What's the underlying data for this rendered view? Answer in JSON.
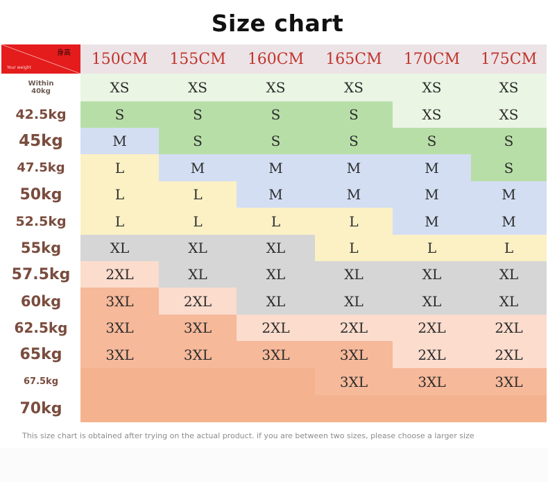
{
  "title": "Size chart",
  "corner": {
    "top_label": "身高",
    "bottom_label": "Your weight",
    "color": "#e41c1c"
  },
  "heights": [
    "150CM",
    "155CM",
    "160CM",
    "165CM",
    "170CM",
    "175CM"
  ],
  "weights": [
    "Within\n40kg",
    "42.5kg",
    "45kg",
    "47.5kg",
    "50kg",
    "52.5kg",
    "55kg",
    "57.5kg",
    "60kg",
    "62.5kg",
    "65kg",
    "67.5kg",
    "70kg"
  ],
  "sizes": [
    [
      "XS",
      "XS",
      "XS",
      "XS",
      "XS",
      "XS"
    ],
    [
      "S",
      "S",
      "S",
      "S",
      "XS",
      "XS"
    ],
    [
      "M",
      "S",
      "S",
      "S",
      "S",
      "S"
    ],
    [
      "L",
      "M",
      "M",
      "M",
      "M",
      "S"
    ],
    [
      "L",
      "L",
      "M",
      "M",
      "M",
      "M"
    ],
    [
      "L",
      "L",
      "L",
      "L",
      "M",
      "M"
    ],
    [
      "XL",
      "XL",
      "XL",
      "L",
      "L",
      "L"
    ],
    [
      "2XL",
      "XL",
      "XL",
      "XL",
      "XL",
      "XL"
    ],
    [
      "3XL",
      "2XL",
      "XL",
      "XL",
      "XL",
      "XL"
    ],
    [
      "3XL",
      "3XL",
      "2XL",
      "2XL",
      "2XL",
      "2XL"
    ],
    [
      "3XL",
      "3XL",
      "3XL",
      "3XL",
      "2XL",
      "2XL"
    ],
    [
      "",
      "",
      "",
      "3XL",
      "3XL",
      "3XL"
    ],
    [
      "",
      "",
      "",
      "",
      "",
      ""
    ]
  ],
  "size_colors": {
    "XS": "#eaf5e4",
    "S": "#b8dea8",
    "M": "#d3def3",
    "L": "#fbf1c5",
    "XL": "#d6d6d6",
    "2XL": "#fbdccd",
    "3XL": "#f6b99a",
    "": "#f4b38e"
  },
  "note": "This size chart is obtained after trying on the actual product. if you are between two sizes, please choose a larger size"
}
